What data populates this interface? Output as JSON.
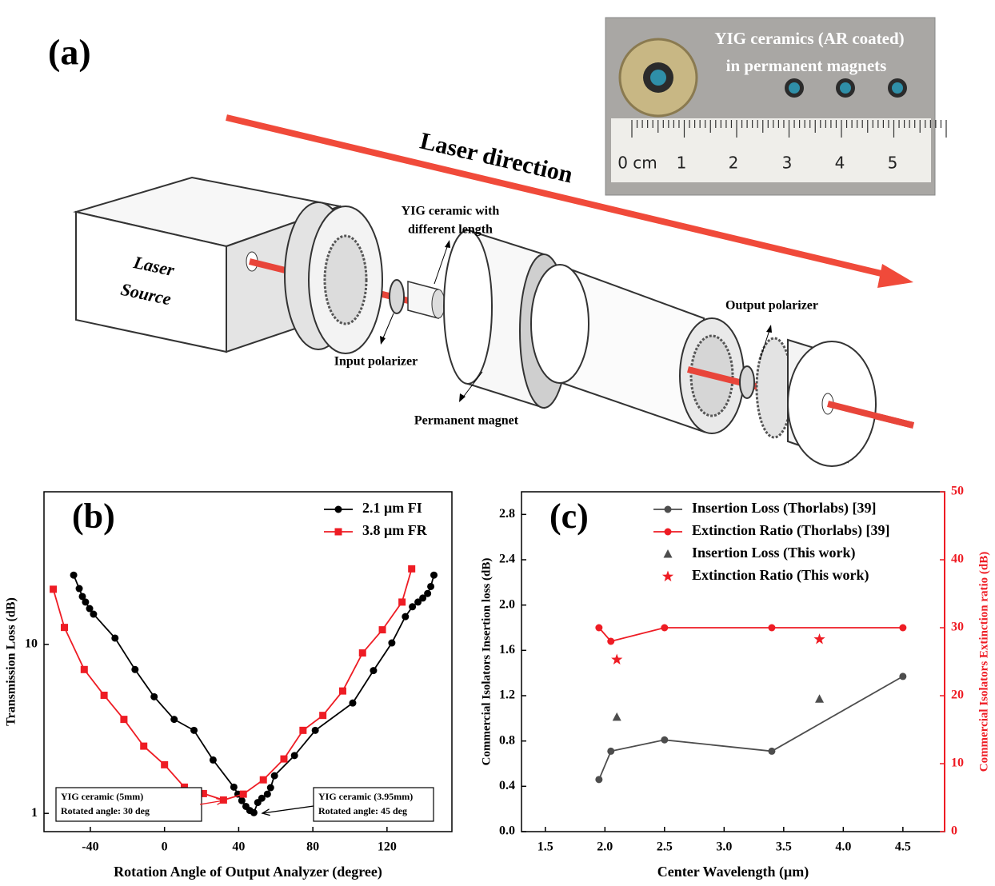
{
  "panel_a": {
    "label": "(a)",
    "laser_direction": "Laser direction",
    "laser_source": [
      "Laser",
      "Source"
    ],
    "yig_ceramic": [
      "YIG ceramic with",
      "different length"
    ],
    "input_polarizer": "Input polarizer",
    "permanent_magnet": "Permanent magnet",
    "output_polarizer": "Output polarizer",
    "inset_caption": [
      "YIG ceramics (AR coated)",
      "in permanent magnets"
    ],
    "ruler_labels": [
      "0 cm",
      "1",
      "2",
      "3",
      "4",
      "5"
    ]
  },
  "chart_data": [
    {
      "type": "line",
      "panel_label": "(b)",
      "xlabel": "Rotation Angle of Output Analyzer (degree)",
      "ylabel": "Transmission Loss (dB)",
      "xlim": [
        -65,
        155
      ],
      "xticks": [
        -40,
        0,
        40,
        80,
        120
      ],
      "ylim": [
        0.78,
        80
      ],
      "yticks": [
        1,
        10
      ],
      "yscale": "log",
      "legend": "upper right",
      "series": [
        {
          "name": "2.1 μm FI",
          "color": "#000000",
          "marker": "circle",
          "style": "line",
          "x": [
            -49.0,
            -46.0,
            -44.3,
            -42.6,
            -40.4,
            -38.3,
            -26.7,
            -15.9,
            -5.6,
            5.2,
            15.9,
            26.2,
            37.4,
            39.6,
            41.7,
            43.9,
            46.0,
            48.2,
            50.3,
            52.5,
            55.5,
            57.2,
            59.3,
            70.1,
            81.3,
            101.5,
            112.7,
            122.6,
            129.9,
            133.7,
            136.7,
            139.3,
            141.9,
            143.6,
            145.3
          ],
          "values": [
            25.7,
            21.4,
            19.2,
            17.8,
            16.3,
            15.1,
            10.9,
            7.1,
            4.9,
            3.6,
            3.1,
            2.07,
            1.43,
            1.3,
            1.19,
            1.1,
            1.04,
            1.01,
            1.16,
            1.23,
            1.3,
            1.42,
            1.67,
            2.2,
            3.1,
            4.5,
            7.0,
            10.2,
            14.6,
            16.7,
            17.8,
            18.8,
            20,
            22,
            25.7
          ]
        },
        {
          "name": "3.8 μm FR",
          "color": "#ee1c24",
          "marker": "square",
          "style": "line",
          "x": [
            -60,
            -54,
            -43.3,
            -32.6,
            -21.9,
            -11.2,
            0,
            10.7,
            21,
            31.8,
            42.5,
            53.3,
            64.4,
            74.7,
            85.4,
            96.1,
            106.8,
            117.5,
            128.1,
            133.3
          ],
          "values": [
            21.2,
            12.6,
            7.1,
            5.0,
            3.6,
            2.5,
            1.94,
            1.43,
            1.31,
            1.2,
            1.3,
            1.58,
            2.1,
            3.1,
            3.8,
            5.3,
            8.9,
            12.2,
            17.8,
            28
          ]
        }
      ],
      "annotations": [
        [
          "YIG ceramic (5mm)",
          "Rotated angle: 30 deg"
        ],
        [
          "YIG ceramic (3.95mm)",
          "Rotated angle: 45 deg"
        ]
      ]
    },
    {
      "type": "line",
      "panel_label": "(c)",
      "xlabel": "Center Wavelength (μm)",
      "ylabel": "Commercial Isolators Insertion loss (dB)",
      "y2label": "Commercial Isolators Extinction ratio (dB)",
      "xlim": [
        1.3,
        4.85
      ],
      "xticks": [
        1.5,
        {
          "value": 2,
          "label": "2.0"
        },
        2.5,
        {
          "value": 3,
          "label": "3.0"
        },
        3.5,
        {
          "value": 4,
          "label": "4.0"
        },
        4.5
      ],
      "ylim": [
        0,
        3.0
      ],
      "yticks": [
        {
          "value": 0,
          "label": "0.0"
        },
        0.4,
        0.8,
        1.2,
        1.6,
        {
          "value": 2,
          "label": "2.0"
        },
        2.4,
        2.8
      ],
      "y2lim": [
        0,
        50
      ],
      "y2ticks": [
        0,
        10,
        20,
        30,
        40,
        50
      ],
      "y2_color": "#ee1c24",
      "legend": "upper left",
      "series": [
        {
          "name": "Insertion Loss (Thorlabs) [39]",
          "color": "#4d4d4d",
          "marker": "circle",
          "style": "line",
          "x": [
            1.95,
            2.05,
            2.5,
            3.4,
            4.5
          ],
          "values": [
            0.46,
            0.71,
            0.81,
            0.71,
            1.37
          ]
        },
        {
          "name": "Extinction Ratio (Thorlabs) [39]",
          "color": "#ee1c24",
          "marker": "circle",
          "style": "line",
          "axis": "y2",
          "x": [
            1.95,
            2.05,
            2.5,
            3.4,
            4.5
          ],
          "values": [
            30,
            28,
            30,
            30,
            30
          ]
        },
        {
          "name": "Insertion Loss (This work)",
          "color": "#4d4d4d",
          "marker": "triangle",
          "style": "scatter",
          "x": [
            2.1,
            3.8
          ],
          "values": [
            1.01,
            1.17
          ]
        },
        {
          "name": "Extinction Ratio (This work)",
          "color": "#ee1c24",
          "marker": "star",
          "style": "scatter",
          "axis": "y2",
          "x": [
            2.1,
            3.8
          ],
          "values": [
            25.3,
            28.3
          ]
        }
      ]
    }
  ]
}
